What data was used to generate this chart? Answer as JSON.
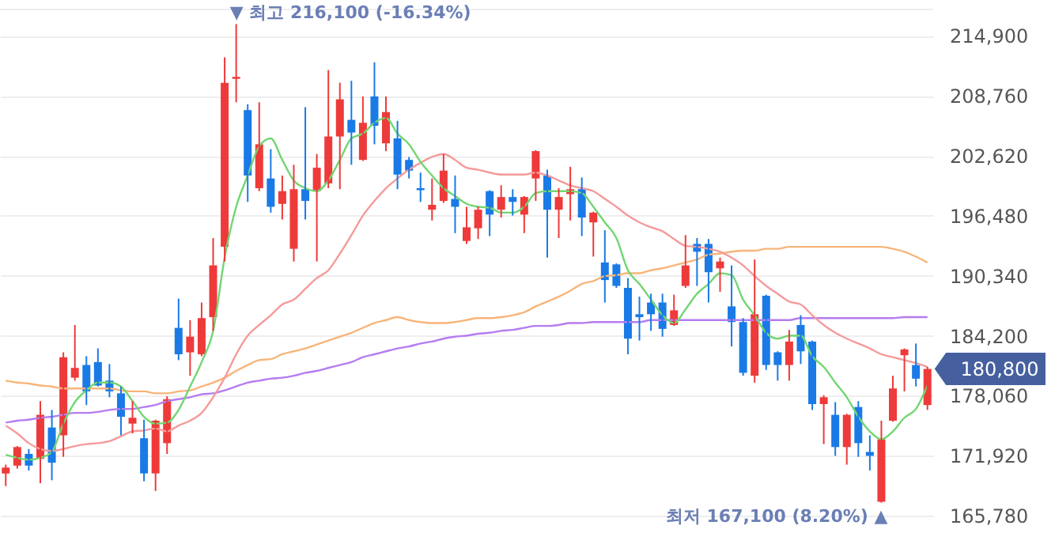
{
  "chart_data": {
    "type": "candlestick",
    "categories": [
      null,
      null,
      null,
      null,
      null,
      null,
      null,
      null,
      null,
      null,
      null,
      null,
      null,
      null,
      null,
      null,
      null,
      null,
      null,
      null,
      null,
      null,
      null,
      null,
      null,
      null,
      null,
      null,
      null,
      null,
      null,
      null,
      null,
      null,
      null,
      null,
      null,
      null,
      null,
      null,
      null,
      null,
      null,
      null,
      null,
      null,
      null,
      null,
      null,
      null,
      null,
      null,
      null,
      null,
      null,
      null,
      null,
      null,
      null,
      null,
      null,
      null,
      null,
      null,
      null,
      null,
      null,
      null,
      null,
      null,
      null,
      null,
      null,
      null,
      null,
      null,
      null,
      null,
      null,
      null,
      null
    ],
    "ohlc": [
      [
        170100,
        171000,
        168800,
        170700
      ],
      [
        170900,
        172900,
        170600,
        172800
      ],
      [
        172100,
        172600,
        170400,
        170900
      ],
      [
        171600,
        177500,
        169100,
        176100
      ],
      [
        174800,
        176600,
        169400,
        171200
      ],
      [
        174000,
        182500,
        171800,
        182000
      ],
      [
        179900,
        185300,
        179600,
        180900
      ],
      [
        181200,
        182100,
        177100,
        178500
      ],
      [
        181500,
        182900,
        179000,
        179100
      ],
      [
        179600,
        181300,
        177900,
        178500
      ],
      [
        178300,
        179000,
        174000,
        175900
      ],
      [
        175200,
        177500,
        174200,
        175800
      ],
      [
        173700,
        175600,
        169300,
        170100
      ],
      [
        170100,
        175600,
        168300,
        175500
      ],
      [
        173200,
        178000,
        172100,
        177700
      ],
      [
        185000,
        188000,
        181700,
        182300
      ],
      [
        182500,
        185800,
        180100,
        184100
      ],
      [
        182300,
        187600,
        182100,
        186000
      ],
      [
        186100,
        194200,
        184700,
        191400
      ],
      [
        193300,
        212700,
        191800,
        210100
      ],
      [
        210500,
        216100,
        208100,
        210700
      ],
      [
        207300,
        207900,
        197900,
        200600
      ],
      [
        199300,
        208100,
        199000,
        203800
      ],
      [
        200300,
        203300,
        196800,
        197400
      ],
      [
        197700,
        200600,
        196100,
        199000
      ],
      [
        193100,
        201700,
        191800,
        199200
      ],
      [
        199200,
        207600,
        196100,
        198000
      ],
      [
        199000,
        202800,
        191800,
        201400
      ],
      [
        199800,
        211400,
        199300,
        204600
      ],
      [
        204600,
        210100,
        199200,
        208400
      ],
      [
        206300,
        210300,
        201700,
        205000
      ],
      [
        202200,
        208700,
        202100,
        206000
      ],
      [
        208700,
        212200,
        203800,
        205700
      ],
      [
        203900,
        208700,
        203100,
        207100
      ],
      [
        204400,
        206200,
        199200,
        200700
      ],
      [
        202200,
        202500,
        200300,
        201100
      ],
      [
        199300,
        200900,
        197900,
        199100
      ],
      [
        197100,
        200300,
        196000,
        197600
      ],
      [
        198000,
        202800,
        197800,
        201100
      ],
      [
        198200,
        200600,
        194700,
        197400
      ],
      [
        193900,
        197400,
        193600,
        195300
      ],
      [
        195200,
        197400,
        194100,
        197100
      ],
      [
        199000,
        199100,
        194400,
        196600
      ],
      [
        197100,
        199600,
        196300,
        198400
      ],
      [
        198400,
        199200,
        196500,
        197900
      ],
      [
        196600,
        198500,
        194700,
        198400
      ],
      [
        200300,
        203200,
        198000,
        203100
      ],
      [
        200600,
        201200,
        192200,
        197100
      ],
      [
        197100,
        199300,
        194200,
        198400
      ],
      [
        198700,
        201500,
        196000,
        199200
      ],
      [
        199200,
        200400,
        194400,
        196300
      ],
      [
        195800,
        196900,
        192300,
        196800
      ],
      [
        191700,
        195000,
        187600,
        189900
      ],
      [
        191500,
        191600,
        189100,
        189300
      ],
      [
        189100,
        190100,
        182300,
        183900
      ],
      [
        186400,
        188200,
        183700,
        186100
      ],
      [
        187600,
        188500,
        184700,
        186400
      ],
      [
        187600,
        188500,
        184100,
        184900
      ],
      [
        185300,
        188400,
        185200,
        186800
      ],
      [
        189300,
        194500,
        189100,
        191400
      ],
      [
        193600,
        194200,
        189300,
        192800
      ],
      [
        193600,
        194100,
        187600,
        190700
      ],
      [
        191100,
        192200,
        188700,
        191800
      ],
      [
        187200,
        191400,
        183100,
        185600
      ],
      [
        185600,
        186000,
        180100,
        180400
      ],
      [
        180100,
        192000,
        179400,
        186400
      ],
      [
        188300,
        188400,
        180700,
        181200
      ],
      [
        182500,
        182600,
        179600,
        181200
      ],
      [
        181200,
        184800,
        179600,
        183600
      ],
      [
        185300,
        186300,
        181300,
        182600
      ],
      [
        183600,
        183700,
        176600,
        177200
      ],
      [
        177200,
        178100,
        173100,
        177900
      ],
      [
        176100,
        177400,
        171900,
        172800
      ],
      [
        172800,
        176200,
        171000,
        176100
      ],
      [
        176900,
        177500,
        171800,
        173200
      ],
      [
        172300,
        174000,
        170400,
        171900
      ],
      [
        167200,
        175500,
        167100,
        173600
      ],
      [
        175500,
        180100,
        175400,
        178800
      ],
      [
        182200,
        182900,
        178500,
        182800
      ],
      [
        181200,
        183400,
        179000,
        179800
      ],
      [
        177100,
        181000,
        176600,
        180800
      ]
    ],
    "colors": [
      "#ee3a3a",
      "#ee3a3a",
      "#1a7ae6",
      "#ee3a3a",
      "#1a7ae6",
      "#ee3a3a",
      "#ee3a3a",
      "#1a7ae6",
      "#1a7ae6",
      "#1a7ae6",
      "#1a7ae6",
      "#ee3a3a",
      "#1a7ae6",
      "#ee3a3a",
      "#ee3a3a",
      "#1a7ae6",
      "#ee3a3a",
      "#ee3a3a",
      "#ee3a3a",
      "#ee3a3a",
      "#ee3a3a",
      "#1a7ae6",
      "#ee3a3a",
      "#1a7ae6",
      "#ee3a3a",
      "#ee3a3a",
      "#1a7ae6",
      "#ee3a3a",
      "#ee3a3a",
      "#ee3a3a",
      "#1a7ae6",
      "#ee3a3a",
      "#1a7ae6",
      "#ee3a3a",
      "#1a7ae6",
      "#1a7ae6",
      "#1a7ae6",
      "#ee3a3a",
      "#ee3a3a",
      "#1a7ae6",
      "#ee3a3a",
      "#ee3a3a",
      "#1a7ae6",
      "#ee3a3a",
      "#1a7ae6",
      "#ee3a3a",
      "#ee3a3a",
      "#1a7ae6",
      "#ee3a3a",
      "#ee3a3a",
      "#1a7ae6",
      "#ee3a3a",
      "#1a7ae6",
      "#1a7ae6",
      "#1a7ae6",
      "#1a7ae6",
      "#1a7ae6",
      "#1a7ae6",
      "#ee3a3a",
      "#ee3a3a",
      "#1a7ae6",
      "#1a7ae6",
      "#ee3a3a",
      "#1a7ae6",
      "#1a7ae6",
      "#ee3a3a",
      "#1a7ae6",
      "#1a7ae6",
      "#ee3a3a",
      "#1a7ae6",
      "#1a7ae6",
      "#ee3a3a",
      "#1a7ae6",
      "#ee3a3a",
      "#1a7ae6",
      "#1a7ae6",
      "#ee3a3a",
      "#ee3a3a",
      "#ee3a3a",
      "#1a7ae6",
      "#ee3a3a"
    ],
    "series": [
      {
        "type": "line",
        "color": "#b57cf0",
        "values": [
          175300,
          175500,
          175600,
          175800,
          175900,
          176100,
          176300,
          176300,
          176400,
          176600,
          176700,
          176700,
          176900,
          177100,
          177500,
          177700,
          177900,
          178200,
          178300,
          178600,
          179000,
          179400,
          179600,
          179800,
          179900,
          180100,
          180400,
          180600,
          180900,
          181200,
          181500,
          182000,
          182300,
          182600,
          182900,
          183100,
          183400,
          183600,
          183900,
          184100,
          184200,
          184400,
          184500,
          184700,
          184800,
          185000,
          185200,
          185200,
          185300,
          185500,
          185500,
          185600,
          185600,
          185600,
          185600,
          185600,
          185800,
          185800,
          185800,
          185800,
          185800,
          185800,
          185800,
          185800,
          185800,
          185800,
          185800,
          185800,
          185800,
          186000,
          186000,
          186000,
          186000,
          186000,
          186000,
          186000,
          186000,
          186000,
          186100,
          186100,
          186100
        ]
      },
      {
        "type": "line",
        "color": "#f7b57a",
        "values": [
          179600,
          179400,
          179300,
          179100,
          179000,
          178800,
          178800,
          178800,
          178800,
          178800,
          178600,
          178500,
          178500,
          178300,
          178300,
          178500,
          178600,
          179000,
          179400,
          179900,
          180600,
          181200,
          181700,
          181800,
          182300,
          182600,
          182900,
          183300,
          183700,
          184100,
          184500,
          185000,
          185500,
          185800,
          186100,
          185800,
          185600,
          185500,
          185500,
          185600,
          185800,
          186000,
          186000,
          186100,
          186300,
          186600,
          187200,
          187700,
          188200,
          188800,
          189500,
          189800,
          190300,
          190400,
          190600,
          190600,
          190900,
          191100,
          191400,
          191700,
          192000,
          192500,
          192600,
          192800,
          192900,
          192900,
          193100,
          193100,
          193300,
          193300,
          193300,
          193300,
          193300,
          193300,
          193300,
          193300,
          193300,
          193100,
          192800,
          192300,
          191700
        ]
      },
      {
        "type": "line",
        "color": "#f59a9a",
        "values": [
          175000,
          174200,
          173200,
          172600,
          172400,
          172600,
          172900,
          173100,
          173200,
          173400,
          173900,
          174400,
          174500,
          174700,
          174400,
          175000,
          175500,
          176300,
          177900,
          179900,
          182300,
          184200,
          185300,
          186300,
          187400,
          187900,
          189000,
          190100,
          190900,
          192600,
          194500,
          196500,
          198000,
          199300,
          200300,
          201200,
          201900,
          202500,
          202800,
          202200,
          201400,
          201200,
          200900,
          200700,
          200700,
          200700,
          200900,
          200600,
          200100,
          199600,
          199300,
          199000,
          198200,
          197400,
          196500,
          195800,
          195300,
          194900,
          194100,
          193400,
          193300,
          193100,
          192800,
          192200,
          191400,
          190300,
          189300,
          188500,
          187700,
          187400,
          186300,
          185300,
          184500,
          183900,
          183400,
          182900,
          182300,
          182000,
          181700,
          181400,
          181000
        ]
      },
      {
        "type": "line",
        "color": "#72d672",
        "values": [
          172000,
          171700,
          171500,
          171700,
          172300,
          175200,
          177400,
          178600,
          179400,
          179400,
          179000,
          177500,
          175900,
          175200,
          175300,
          176600,
          179000,
          181500,
          184700,
          192200,
          197400,
          200600,
          203600,
          204400,
          202200,
          200100,
          199300,
          199000,
          200100,
          202200,
          204400,
          204900,
          206000,
          206500,
          204900,
          203800,
          202000,
          200600,
          199300,
          198500,
          197700,
          197400,
          197300,
          196800,
          196800,
          197400,
          198800,
          199000,
          199000,
          199000,
          198800,
          197400,
          195800,
          194200,
          190900,
          189500,
          187900,
          186300,
          185500,
          186900,
          188500,
          189500,
          190600,
          190400,
          187900,
          186300,
          184500,
          183900,
          184200,
          184200,
          182100,
          181000,
          179400,
          177900,
          175900,
          174400,
          173600,
          174400,
          175800,
          176700,
          179100
        ]
      }
    ],
    "ylim": [
      164000,
      217600
    ],
    "yticks": [
      {
        "value": 165780,
        "label": "165,780"
      },
      {
        "value": 171920,
        "label": "171,920"
      },
      {
        "value": 178060,
        "label": "178,060"
      },
      {
        "value": 184200,
        "label": "184,200"
      },
      {
        "value": 190340,
        "label": "190,340"
      },
      {
        "value": 196480,
        "label": "196,480"
      },
      {
        "value": 202620,
        "label": "202,620"
      },
      {
        "value": 208760,
        "label": "208,760"
      },
      {
        "value": 214900,
        "label": "214,900"
      }
    ],
    "grid": "y",
    "tick_labels": "y",
    "annotations": [
      "▼ 최고 216,100 (-16.34%)",
      "최저 167,100 (8.20%) ▲",
      "180,800"
    ]
  }
}
